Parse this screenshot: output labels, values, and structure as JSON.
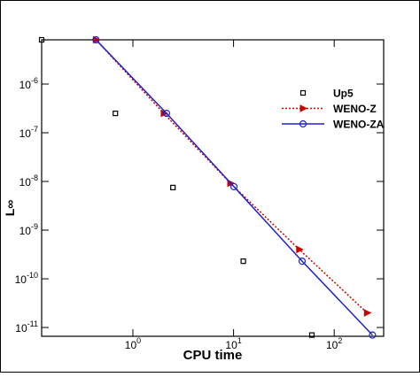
{
  "chart_data": {
    "type": "line",
    "xlabel": "CPU time",
    "ylabel": "L∞",
    "xscale": "log",
    "yscale": "log",
    "xlim": [
      0.124,
      310
    ],
    "ylim": [
      6.6e-12,
      8.1e-06
    ],
    "xticks": [
      {
        "value": 1,
        "label": "100"
      },
      {
        "value": 10,
        "label": "101"
      },
      {
        "value": 100,
        "label": "102"
      }
    ],
    "yticks": [
      {
        "value": 1e-11,
        "label": "10-11"
      },
      {
        "value": 1e-10,
        "label": "10-10"
      },
      {
        "value": 1e-09,
        "label": "10-9"
      },
      {
        "value": 1e-08,
        "label": "10-8"
      },
      {
        "value": 1e-07,
        "label": "10-7"
      },
      {
        "value": 1e-06,
        "label": "10-6"
      }
    ],
    "legend": "upper right",
    "series": [
      {
        "name": "Up5",
        "color": "#000000",
        "line": "none",
        "marker": "square",
        "x": [
          0.124,
          0.67,
          2.5,
          12.5,
          60
        ],
        "values": [
          8.1e-06,
          2.5e-07,
          7.5e-09,
          2.3e-10,
          7e-12
        ]
      },
      {
        "name": "WENO-Z",
        "color": "#cc0000",
        "line": "dotted",
        "marker": "triangle",
        "x": [
          0.43,
          2.03,
          9.3,
          45,
          212
        ],
        "values": [
          8.1e-06,
          2.5e-07,
          9.2e-09,
          4e-10,
          2e-11
        ]
      },
      {
        "name": "WENO-ZA",
        "color": "#2020cc",
        "line": "solid",
        "marker": "circle",
        "x": [
          0.43,
          2.16,
          10.1,
          48,
          240
        ],
        "values": [
          8.1e-06,
          2.5e-07,
          7.8e-09,
          2.3e-10,
          7e-12
        ]
      }
    ]
  }
}
